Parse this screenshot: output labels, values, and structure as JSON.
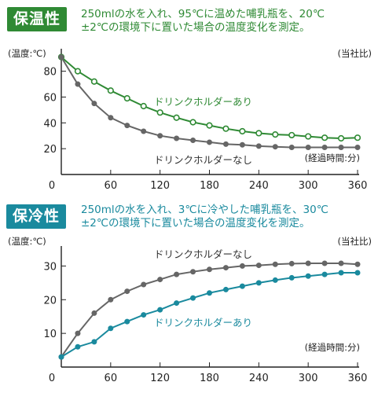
{
  "colors": {
    "warm_accent": "#2f8a34",
    "cool_accent": "#1a8a9e",
    "gray_series": "#666666",
    "axis": "#222222"
  },
  "warm_panel": {
    "badge": "保温性",
    "desc_line1": "250mlの水を入れ、95℃に温めた哺乳瓶を、20℃",
    "desc_line2": "±2℃の環境下に置いた場合の温度変化を測定。"
  },
  "cool_panel": {
    "badge": "保冷性",
    "desc_line1": "250mlの水を入れ、3℃に冷やした哺乳瓶を、30℃",
    "desc_line2": "±2℃の環境下に置いた場合の温度変化を測定。"
  },
  "chart_data": [
    {
      "type": "line",
      "ylabel": "(温度:℃)",
      "corner_note": "(当社比)",
      "xlabel": "(経過時間:分)",
      "xlim": [
        0,
        360
      ],
      "ylim": [
        0,
        95
      ],
      "xticks": [
        0,
        60,
        120,
        180,
        240,
        300,
        360
      ],
      "yticks": [
        20,
        40,
        60,
        80
      ],
      "x": [
        0,
        20,
        40,
        60,
        80,
        100,
        120,
        140,
        160,
        180,
        200,
        220,
        240,
        260,
        280,
        300,
        320,
        340,
        360
      ],
      "series": [
        {
          "name": "ドリンクホルダーあり",
          "color": "#2f8a34",
          "marker": "hollow",
          "values": [
            91,
            80,
            72,
            65,
            59,
            53,
            48,
            44,
            40.5,
            38,
            35.5,
            33.5,
            32,
            31,
            30.5,
            29.5,
            28.5,
            28,
            28.5
          ]
        },
        {
          "name": "ドリンクホルダーなし",
          "color": "#666666",
          "marker": "filled",
          "values": [
            91,
            70,
            55,
            44,
            38,
            33.5,
            30,
            28,
            26.5,
            25,
            23.5,
            23,
            22,
            21.5,
            21,
            21,
            21,
            21,
            21
          ]
        }
      ]
    },
    {
      "type": "line",
      "ylabel": "(温度:℃)",
      "corner_note": "(当社比)",
      "xlabel": "(経過時間:分)",
      "xlim": [
        0,
        360
      ],
      "ylim": [
        0,
        35
      ],
      "xticks": [
        0,
        60,
        120,
        180,
        240,
        300,
        360
      ],
      "yticks": [
        10,
        20,
        30
      ],
      "x": [
        0,
        20,
        40,
        60,
        80,
        100,
        120,
        140,
        160,
        180,
        200,
        220,
        240,
        260,
        280,
        300,
        320,
        340,
        360
      ],
      "series": [
        {
          "name": "ドリンクホルダーなし",
          "color": "#666666",
          "marker": "filled",
          "values": [
            3,
            10,
            16,
            20,
            22.5,
            24.5,
            26,
            27.5,
            28.3,
            29,
            29.5,
            30,
            30.2,
            30.5,
            30.7,
            30.8,
            30.8,
            30.8,
            30.5
          ]
        },
        {
          "name": "ドリンクホルダーあり",
          "color": "#1a8a9e",
          "marker": "filled",
          "values": [
            3,
            6,
            7.5,
            11.5,
            13.5,
            15.5,
            17,
            19,
            20.5,
            22,
            23,
            24,
            25,
            25.8,
            26.5,
            27,
            27.5,
            28,
            28
          ]
        }
      ]
    }
  ]
}
